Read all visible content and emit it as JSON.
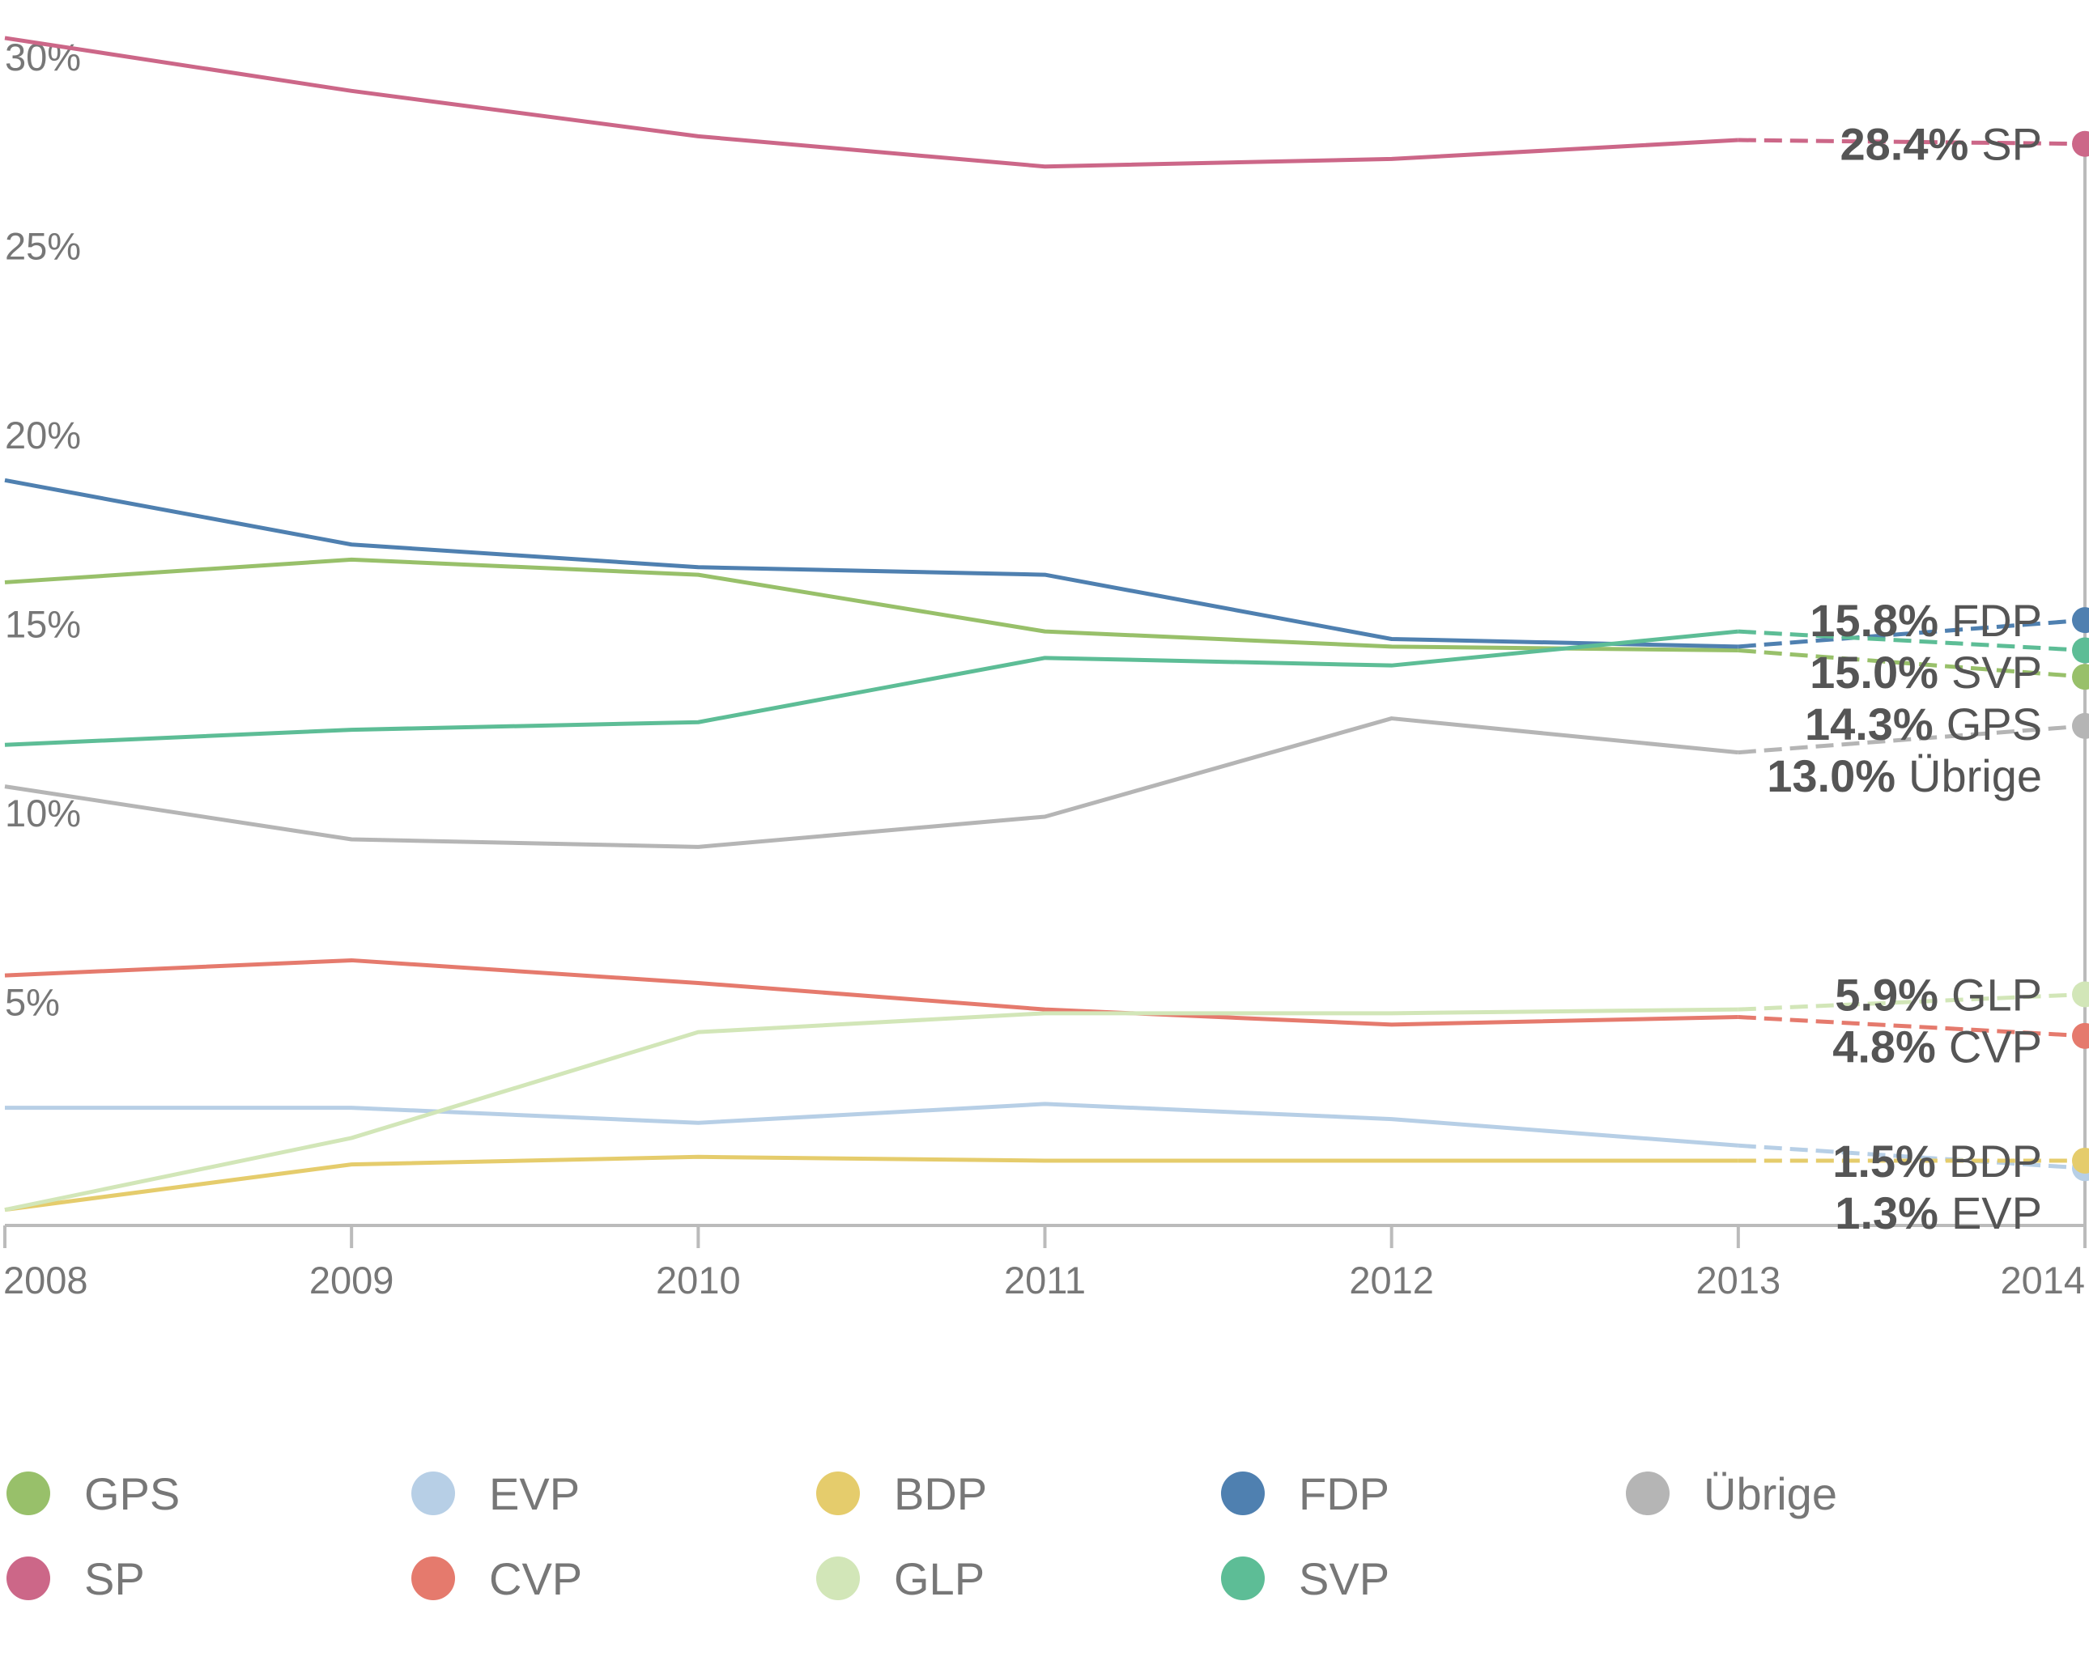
{
  "chart_data": {
    "type": "line",
    "x": [
      "2008",
      "2009",
      "2010",
      "2011",
      "2012",
      "2013",
      "2014"
    ],
    "ylim": [
      0,
      32
    ],
    "yticks": [
      "5%",
      "10%",
      "15%",
      "20%",
      "25%",
      "30%"
    ],
    "grid": false,
    "legend_position": "bottom",
    "series": [
      {
        "name": "GPS",
        "color": "#98c06a",
        "values": [
          16.8,
          17.4,
          17.0,
          15.5,
          15.1,
          15.0,
          14.3
        ],
        "end_value": "14.3%"
      },
      {
        "name": "SP",
        "color": "#cc6788",
        "values": [
          31.2,
          29.8,
          28.6,
          27.8,
          28.0,
          28.5,
          28.4
        ],
        "end_value": "28.4%"
      },
      {
        "name": "EVP",
        "color": "#b7cfe6",
        "values": [
          2.9,
          2.9,
          2.5,
          3.0,
          2.6,
          1.9,
          1.3
        ],
        "end_value": "1.3%"
      },
      {
        "name": "CVP",
        "color": "#e57a6d",
        "values": [
          6.4,
          6.8,
          6.2,
          5.5,
          5.1,
          5.3,
          4.8
        ],
        "end_value": "4.8%"
      },
      {
        "name": "BDP",
        "color": "#e5cc6c",
        "values": [
          0.2,
          1.4,
          1.6,
          1.5,
          1.5,
          1.5,
          1.5
        ],
        "end_value": "1.5%"
      },
      {
        "name": "GLP",
        "color": "#d2e6b8",
        "values": [
          0.2,
          2.1,
          4.9,
          5.4,
          5.4,
          5.5,
          5.9
        ],
        "end_value": "5.9%"
      },
      {
        "name": "FDP",
        "color": "#4f80b0",
        "values": [
          19.5,
          17.8,
          17.2,
          17.0,
          15.3,
          15.1,
          15.8
        ],
        "end_value": "15.8%"
      },
      {
        "name": "SVP",
        "color": "#5dbd96",
        "values": [
          12.5,
          12.9,
          13.1,
          14.8,
          14.6,
          15.5,
          15.0
        ],
        "end_value": "15.0%"
      },
      {
        "name": "Übrige",
        "color": "#b5b5b5",
        "values": [
          11.4,
          10.0,
          9.8,
          10.6,
          13.2,
          12.3,
          13.0
        ],
        "end_value": "13.0%"
      }
    ]
  },
  "legend": {
    "items": [
      {
        "label": "GPS",
        "color": "#98c06a"
      },
      {
        "label": "EVP",
        "color": "#b7cfe6"
      },
      {
        "label": "BDP",
        "color": "#e5cc6c"
      },
      {
        "label": "FDP",
        "color": "#4f80b0"
      },
      {
        "label": "Übrige",
        "color": "#b5b5b5"
      },
      {
        "label": "SP",
        "color": "#cc6788"
      },
      {
        "label": "CVP",
        "color": "#e57a6d"
      },
      {
        "label": "GLP",
        "color": "#d2e6b8"
      },
      {
        "label": "SVP",
        "color": "#5dbd96"
      }
    ]
  }
}
